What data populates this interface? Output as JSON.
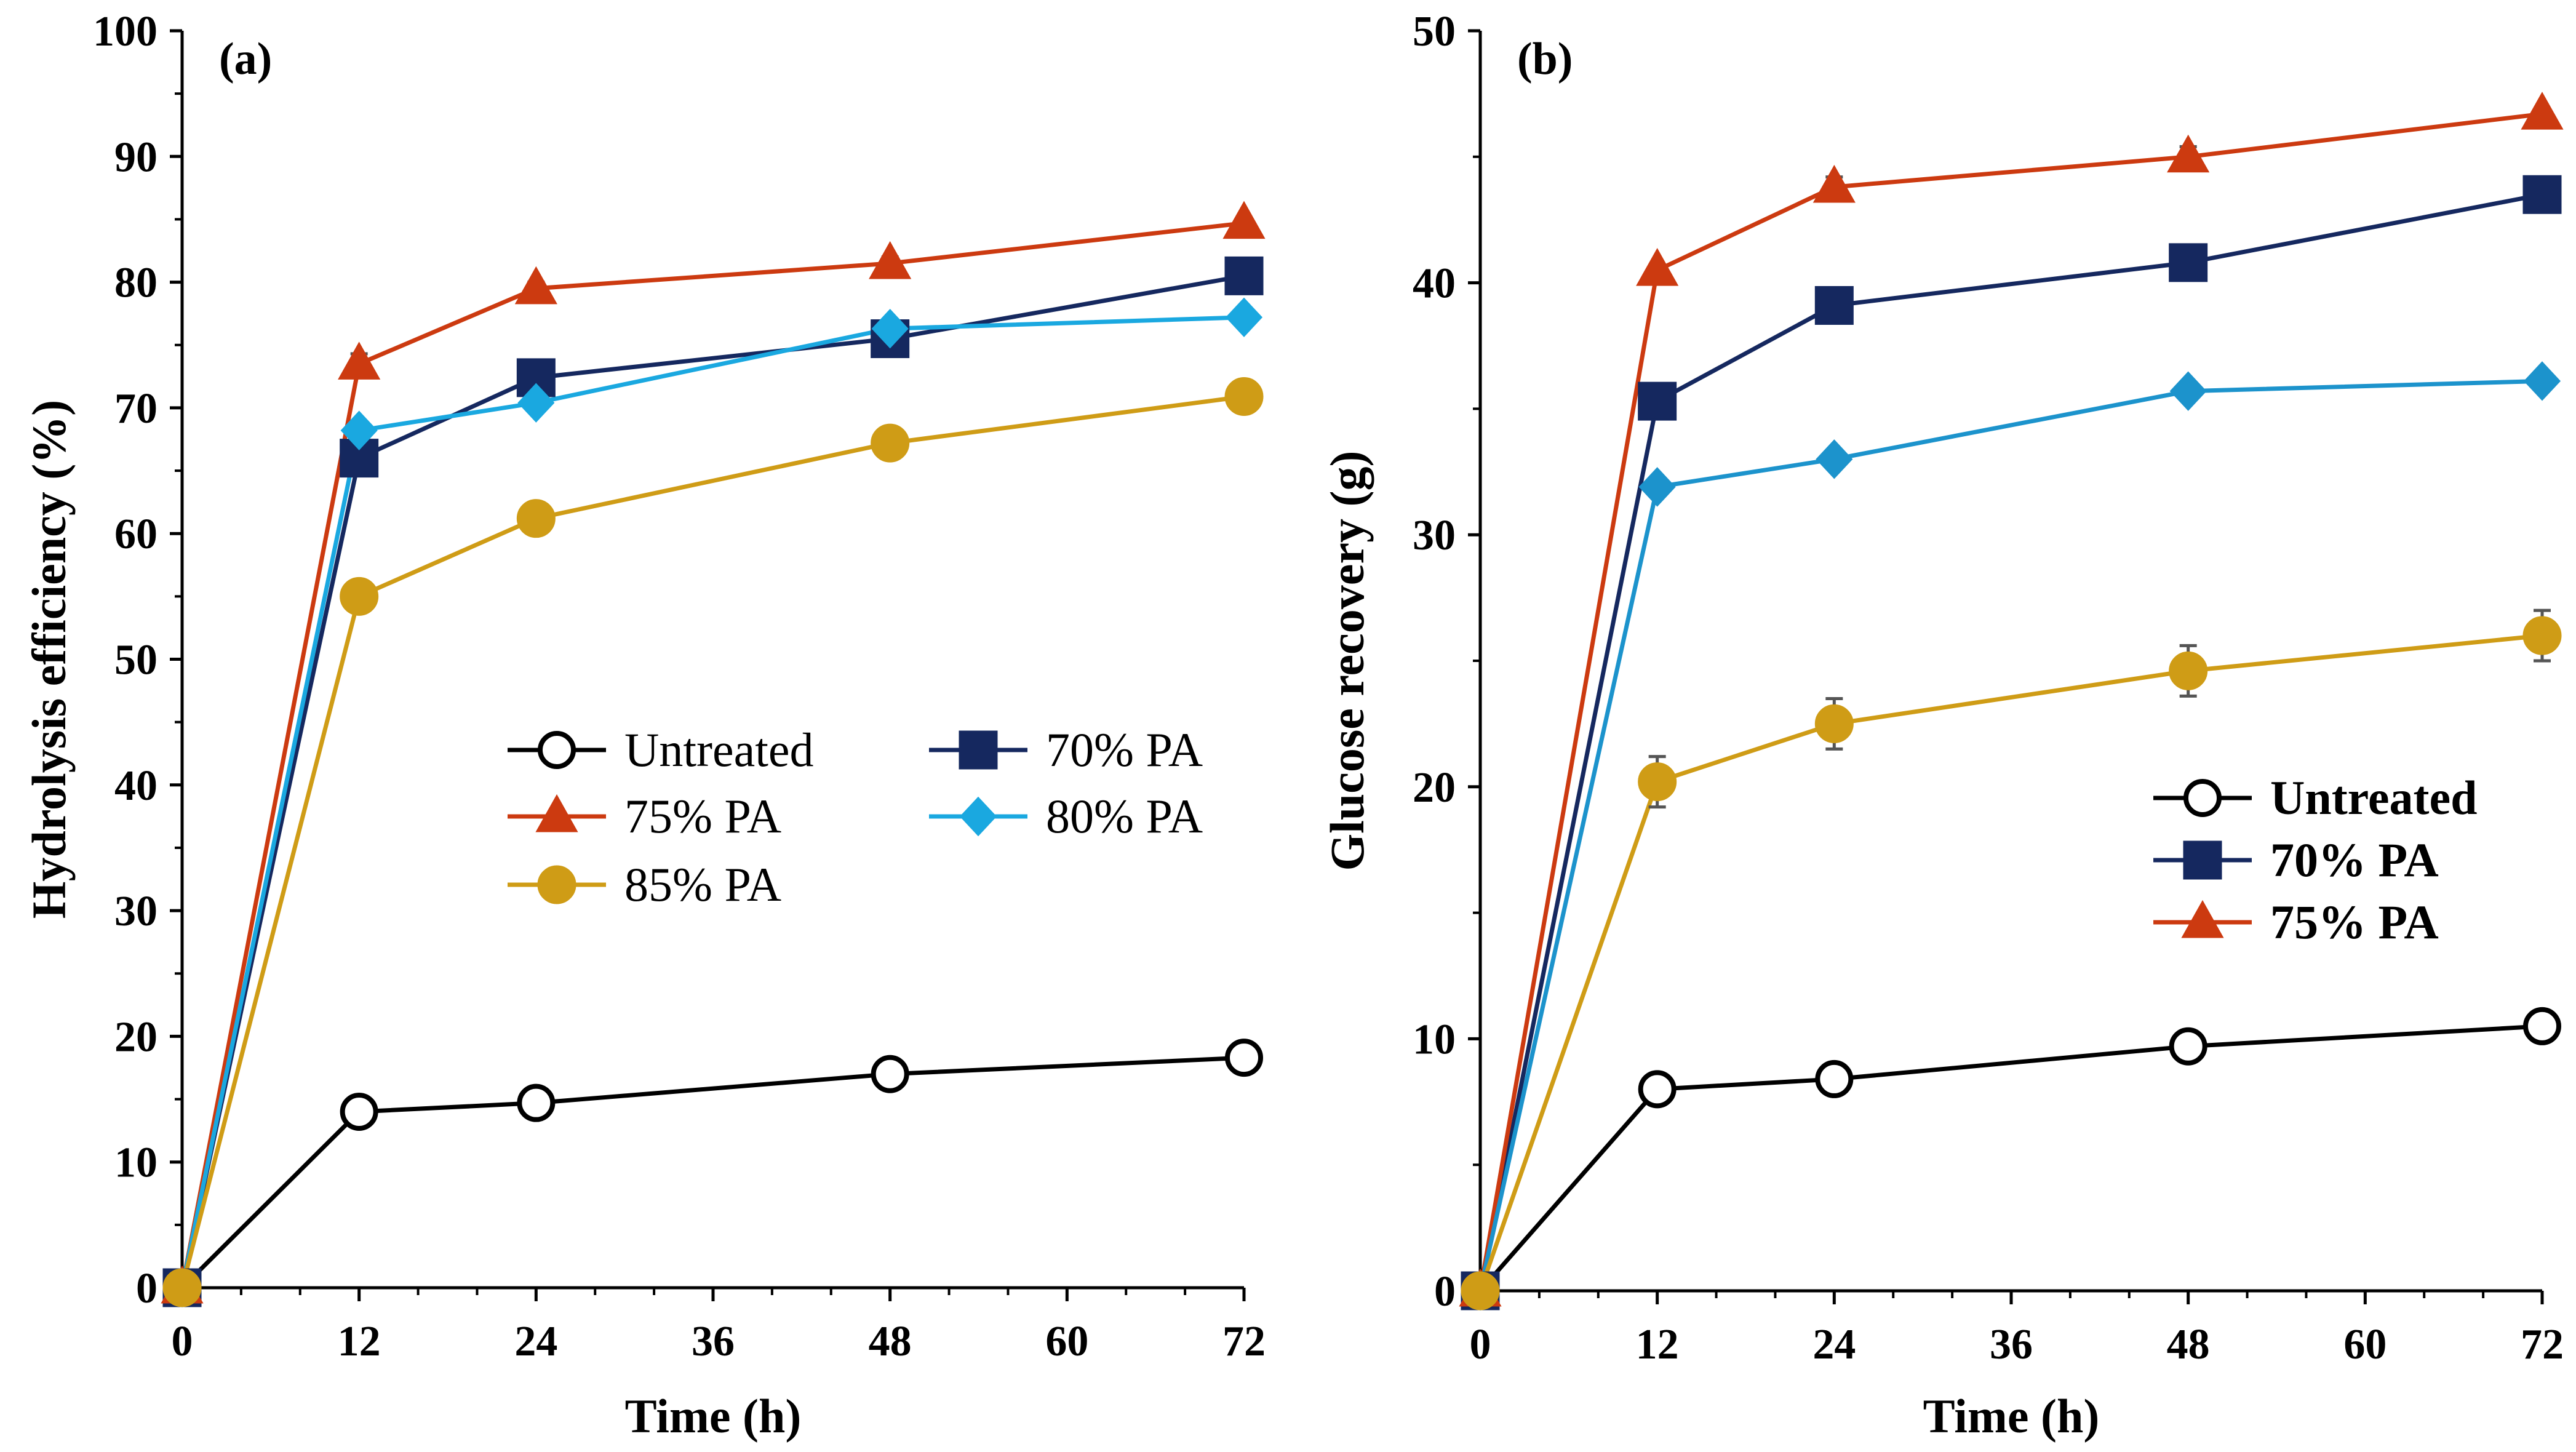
{
  "chart_data": [
    {
      "type": "line",
      "panel_label": "(a)",
      "xlabel": "Time (h)",
      "ylabel": "Hydrolysis efficiency (%)",
      "xlim": [
        0,
        72
      ],
      "ylim": [
        0,
        100
      ],
      "x_ticks": [
        0,
        12,
        24,
        36,
        48,
        60,
        72
      ],
      "y_ticks": [
        0,
        10,
        20,
        30,
        40,
        50,
        60,
        70,
        80,
        90,
        100
      ],
      "grid": false,
      "legend_placement": "center",
      "legend_style": "normal",
      "series": [
        {
          "name": "Untreated",
          "marker": "circle-open",
          "color": "#000000",
          "x": [
            0,
            12,
            24,
            48,
            72
          ],
          "y": [
            0,
            14,
            14.7,
            17,
            18.3
          ],
          "err": [
            0,
            0,
            0,
            0,
            0
          ]
        },
        {
          "name": "70% PA",
          "marker": "square",
          "color": "#15285f",
          "x": [
            0,
            12,
            24,
            48,
            72
          ],
          "y": [
            0,
            66,
            72.4,
            75.5,
            80.5
          ],
          "err": [
            0,
            0,
            0,
            0,
            0
          ]
        },
        {
          "name": "75% PA",
          "marker": "triangle",
          "color": "#cc3a10",
          "x": [
            0,
            12,
            24,
            48,
            72
          ],
          "y": [
            0,
            73.5,
            79.5,
            81.5,
            84.7
          ],
          "err": [
            0,
            0.8,
            0.5,
            0.5,
            0
          ]
        },
        {
          "name": "80% PA",
          "marker": "diamond",
          "color": "#1aa8e0",
          "x": [
            0,
            12,
            24,
            48,
            72
          ],
          "y": [
            0,
            68.2,
            70.4,
            76.3,
            77.2
          ],
          "err": [
            0,
            0,
            0,
            0,
            0
          ]
        },
        {
          "name": "85% PA",
          "marker": "circle",
          "color": "#cf9c16",
          "x": [
            0,
            12,
            24,
            48,
            72
          ],
          "y": [
            0,
            55,
            61.2,
            67.2,
            70.9
          ],
          "err": [
            0,
            0,
            0,
            0,
            0
          ]
        }
      ]
    },
    {
      "type": "line",
      "panel_label": "(b)",
      "xlabel": "Time (h)",
      "ylabel": "Glucose recovery (g)",
      "xlim": [
        0,
        72
      ],
      "ylim": [
        0,
        50
      ],
      "x_ticks": [
        0,
        12,
        24,
        36,
        48,
        60,
        72
      ],
      "y_ticks": [
        0,
        10,
        20,
        30,
        40,
        50
      ],
      "grid": false,
      "legend_placement": "bottom-right",
      "legend_style": "bold",
      "series": [
        {
          "name": "Untreated",
          "marker": "circle-open",
          "color": "#000000",
          "x": [
            0,
            12,
            24,
            48,
            72
          ],
          "y": [
            0,
            8,
            8.4,
            9.7,
            10.5
          ],
          "err": [
            0,
            0,
            0,
            0,
            0
          ]
        },
        {
          "name": "70% PA",
          "marker": "square",
          "color": "#15285f",
          "x": [
            0,
            12,
            24,
            48,
            72
          ],
          "y": [
            0,
            35.3,
            39.1,
            40.8,
            43.5
          ],
          "err": [
            0,
            0,
            0,
            0,
            0
          ]
        },
        {
          "name": "75% PA",
          "marker": "triangle",
          "color": "#cc3a10",
          "x": [
            0,
            12,
            24,
            48,
            72
          ],
          "y": [
            0,
            40.5,
            43.8,
            45,
            46.7
          ],
          "err": [
            0,
            0,
            0.4,
            0.4,
            0
          ]
        },
        {
          "name": "",
          "marker": "diamond",
          "color": "#1c93cc",
          "x": [
            0,
            12,
            24,
            48,
            72
          ],
          "y": [
            0,
            31.9,
            33,
            35.7,
            36.1
          ],
          "err": [
            0,
            0,
            0,
            0,
            0
          ]
        },
        {
          "name": "",
          "marker": "circle",
          "color": "#cf9c16",
          "x": [
            0,
            12,
            24,
            48,
            72
          ],
          "y": [
            0,
            20.2,
            22.5,
            24.6,
            26
          ],
          "err": [
            0,
            1,
            1,
            1,
            1
          ]
        }
      ]
    }
  ]
}
